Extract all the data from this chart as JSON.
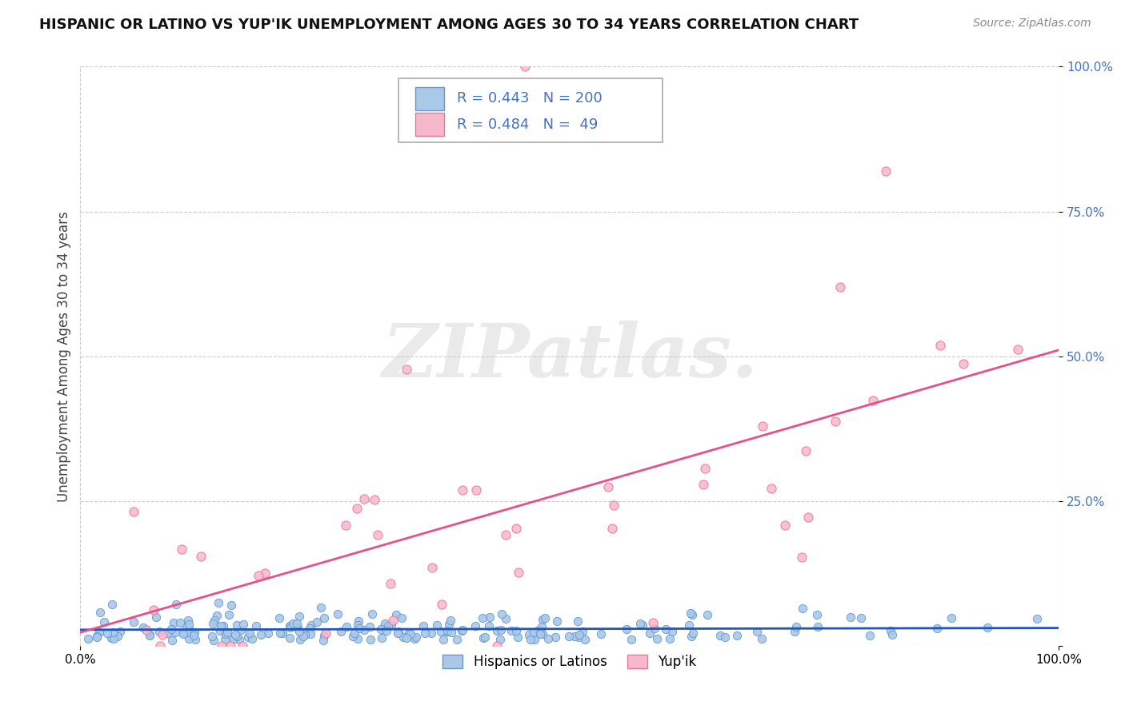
{
  "title": "HISPANIC OR LATINO VS YUP'IK UNEMPLOYMENT AMONG AGES 30 TO 34 YEARS CORRELATION CHART",
  "source": "Source: ZipAtlas.com",
  "ylabel": "Unemployment Among Ages 30 to 34 years",
  "xlim": [
    0,
    1
  ],
  "ylim": [
    0,
    1
  ],
  "xticks": [
    0,
    1.0
  ],
  "xticklabels": [
    "0.0%",
    "100.0%"
  ],
  "yticks": [
    0.0,
    0.25,
    0.5,
    0.75,
    1.0
  ],
  "yticklabels": [
    "",
    "25.0%",
    "50.0%",
    "75.0%",
    "100.0%"
  ],
  "series1_label": "Hispanics or Latinos",
  "series1_color": "#aac8e8",
  "series1_edge": "#6699cc",
  "series1_line_color": "#2255bb",
  "series1_R": 0.443,
  "series1_N": 200,
  "series2_label": "Yup'ik",
  "series2_color": "#f8b8cc",
  "series2_edge": "#e87898",
  "series2_line_color": "#e8508a",
  "series2_R": 0.484,
  "series2_N": 49,
  "legend_color": "#4472c4",
  "background_color": "#ffffff",
  "grid_color": "#cccccc",
  "watermark_text": "ZIPatlas.",
  "title_fontsize": 13,
  "axis_label_fontsize": 12,
  "legend_fontsize": 13,
  "tick_fontsize": 11
}
